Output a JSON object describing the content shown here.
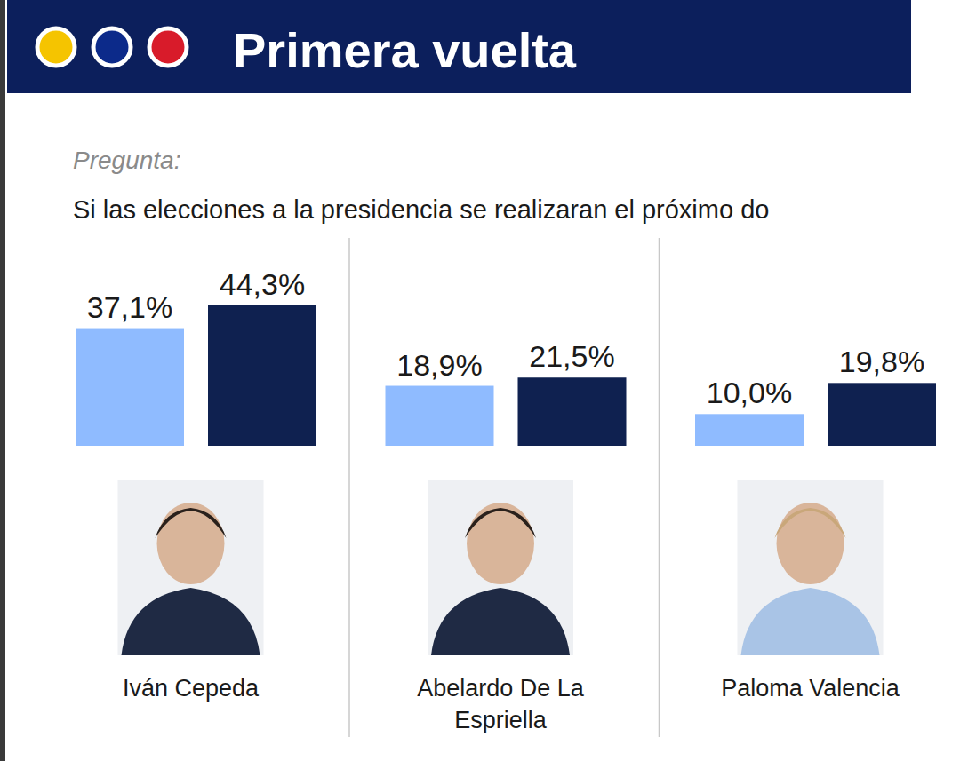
{
  "chart_data": {
    "type": "bar",
    "title": "Primera vuelta",
    "subtitle": "Si las elecciones a la presidencia se realizaran el próximo do",
    "annotations": [
      "Pregunta:"
    ],
    "categories": [
      "Iván Cepeda",
      "Abelardo De La Espriella",
      "Paloma Valencia"
    ],
    "series": [
      {
        "color": "#8fbbff",
        "values": [
          37.1,
          18.9,
          10.0
        ],
        "value_labels": [
          "37,1%",
          "18,9%",
          "10,0%"
        ]
      },
      {
        "color": "#0f2150",
        "values": [
          44.3,
          21.5,
          19.8
        ],
        "value_labels": [
          "44,3%",
          "21,5%",
          "19,8%"
        ]
      }
    ],
    "ylim": [
      0,
      50
    ],
    "data_labels": true,
    "tick_labels": false,
    "grid": false
  }
}
